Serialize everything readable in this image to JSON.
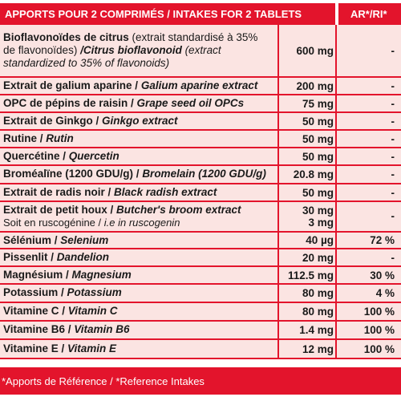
{
  "header": {
    "main": "APPORTS POUR 2 COMPRIMÉS / INTAKES FOR 2 TABLETS",
    "ar": "AR*/RI*"
  },
  "rows": [
    {
      "fr": "Bioflavonoïdes de citrus",
      "fr_note": " (extrait standardisé à 35%",
      "line2_fr": "de flavonoïdes)",
      "en": " /Citrus bioflavonoid",
      "en_note": " (extract",
      "line3": "standardized to 35% of flavonoids)",
      "dose": "600 mg",
      "ar": "-"
    },
    {
      "fr": "Extrait de galium aparine / ",
      "en": "Galium aparine extract",
      "dose": "200 mg",
      "ar": "-"
    },
    {
      "fr": "OPC de pépins de raisin / ",
      "en": "Grape seed oil OPCs",
      "dose": "75 mg",
      "ar": "-"
    },
    {
      "fr": "Extrait de Ginkgo / ",
      "en": "Ginkgo extract",
      "dose": "50 mg",
      "ar": "-"
    },
    {
      "fr": "Rutine / ",
      "en": "Rutin",
      "dose": "50 mg",
      "ar": "-"
    },
    {
      "fr": "Quercétine / ",
      "en": "Quercetin",
      "dose": "50 mg",
      "ar": "-"
    },
    {
      "fr": "Broméalïne (1200 GDU/g) / ",
      "en": "Bromelain (1200 GDU/g)",
      "dose": "20.8 mg",
      "ar": "-"
    },
    {
      "fr": "Extrait de radis noir / ",
      "en": "Black radish extract",
      "dose": "50 mg",
      "ar": "-"
    },
    {
      "fr": "Extrait de petit houx / ",
      "en": "Butcher's broom extract",
      "sub_fr": "Soit en ruscogénine / ",
      "sub_en": "i.e in ruscogenin",
      "dose": "30 mg",
      "dose2": "3 mg",
      "ar": "-"
    },
    {
      "fr": "Sélénium / ",
      "en": "Selenium",
      "dose": "40 µg",
      "ar": "72 %"
    },
    {
      "fr": "Pissenlit / ",
      "en": "Dandelion",
      "dose": "20 mg",
      "ar": "-"
    },
    {
      "fr": "Magnésium / ",
      "en": "Magnesium",
      "dose": "112.5 mg",
      "ar": "30 %"
    },
    {
      "fr": "Potassium / ",
      "en": "Potassium",
      "dose": "80 mg",
      "ar": "4 %"
    },
    {
      "fr": "Vitamine C / ",
      "en": "Vitamin C",
      "dose": "80 mg",
      "ar": "100 %"
    },
    {
      "fr": "Vitamine B6 / ",
      "en": "Vitamin B6",
      "dose": "1.4 mg",
      "ar": "100 %"
    },
    {
      "fr": "Vitamine E / ",
      "en": "Vitamin E",
      "dose": "12 mg",
      "ar": "100 %"
    }
  ],
  "footer": {
    "text": "*Apports de Référence / *Reference Intakes"
  },
  "colors": {
    "accent": "#e3142c",
    "cell_bg": "#fbe4e2"
  }
}
